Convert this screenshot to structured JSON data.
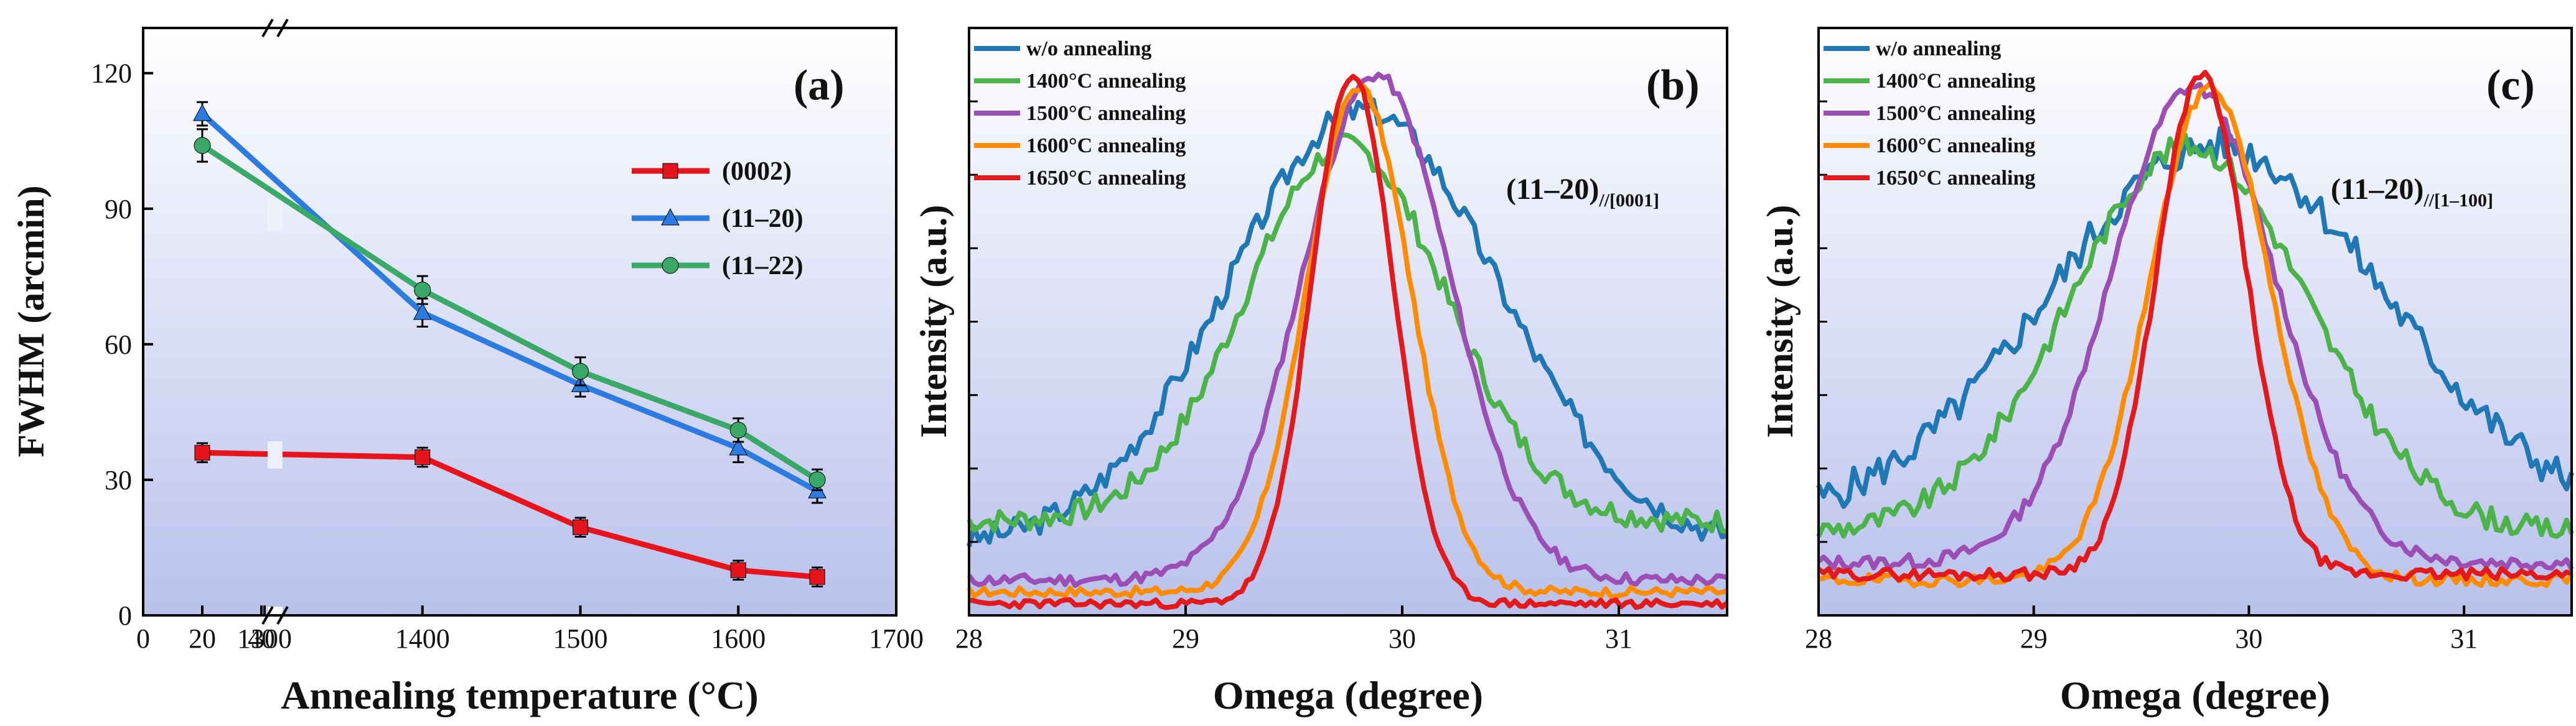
{
  "figure": {
    "panels": [
      "(a)",
      "(b)",
      "(c)"
    ]
  },
  "chart_data": [
    {
      "type": "line",
      "panel_label": "(a)",
      "xlabel": "Annealing temperature (°C)",
      "ylabel": "FWHM (arcmin)",
      "x_ticks": [
        "0",
        "20",
        "40",
        "1300",
        "1400",
        "1500",
        "1600",
        "1700"
      ],
      "y_ticks": [
        "0",
        "30",
        "60",
        "90",
        "120"
      ],
      "ylim": [
        0,
        130
      ],
      "x_break": {
        "from": 40,
        "to": 1300
      },
      "x": [
        20,
        1400,
        1500,
        1600,
        1650
      ],
      "series": [
        {
          "name": "(0002)",
          "color": "#e8141b",
          "marker": "square",
          "values": [
            36,
            35,
            19.5,
            10,
            8.5
          ],
          "err": [
            1,
            1,
            1,
            1,
            1
          ]
        },
        {
          "name": "(11–20)",
          "color": "#2c7be0",
          "marker": "triangle",
          "values": [
            111,
            67,
            51,
            37,
            27.5
          ],
          "err": [
            1.5,
            2,
            1.5,
            2,
            1.5
          ]
        },
        {
          "name": "(11–22)",
          "color": "#3aa867",
          "marker": "circle",
          "values": [
            104,
            72,
            54,
            41,
            30
          ],
          "err": [
            2.5,
            2,
            2,
            1.5,
            1.2
          ]
        }
      ]
    },
    {
      "type": "line",
      "panel_label": "(b)",
      "xlabel": "Omega (degree)",
      "ylabel": "Intensity (a.u.)",
      "x_ticks": [
        "28",
        "29",
        "30",
        "31"
      ],
      "xlim": [
        28,
        31.5
      ],
      "annotation": "(11–20)",
      "annotation_sub": "//[0001]",
      "series": [
        {
          "name": "w/o annealing",
          "color": "#1f77b4",
          "center": 29.82,
          "width": 0.62,
          "peak": 0.86,
          "base": 0.12,
          "noise": 0.022,
          "seed": 3
        },
        {
          "name": "1400°C annealing",
          "color": "#4cb34a",
          "center": 29.74,
          "width": 0.46,
          "peak": 0.8,
          "base": 0.16,
          "noise": 0.02,
          "seed": 7
        },
        {
          "name": "1500°C annealing",
          "color": "#9b4fb5",
          "center": 29.88,
          "width": 0.34,
          "peak": 0.92,
          "base": 0.06,
          "noise": 0.01,
          "seed": 11
        },
        {
          "name": "1600°C annealing",
          "color": "#ff8c00",
          "center": 29.8,
          "width": 0.24,
          "peak": 0.9,
          "base": 0.04,
          "noise": 0.008,
          "seed": 17
        },
        {
          "name": "1650°C annealing",
          "color": "#e31a1c",
          "center": 29.77,
          "width": 0.19,
          "peak": 0.92,
          "base": 0.02,
          "noise": 0.007,
          "seed": 23
        }
      ]
    },
    {
      "type": "line",
      "panel_label": "(c)",
      "xlabel": "Omega (degree)",
      "ylabel": "Intensity (a.u.)",
      "x_ticks": [
        "28",
        "29",
        "30",
        "31"
      ],
      "xlim": [
        28,
        31.5
      ],
      "annotation": "(11–20)",
      "annotation_sub": "//[1–100]",
      "series": [
        {
          "name": "w/o annealing",
          "color": "#1f77b4",
          "center": 29.85,
          "width": 0.78,
          "peak": 0.8,
          "base": 0.16,
          "noise": 0.03,
          "seed": 5
        },
        {
          "name": "1400°C annealing",
          "color": "#4cb34a",
          "center": 29.72,
          "width": 0.55,
          "peak": 0.8,
          "base": 0.14,
          "noise": 0.02,
          "seed": 9
        },
        {
          "name": "1500°C annealing",
          "color": "#9b4fb5",
          "center": 29.74,
          "width": 0.38,
          "peak": 0.9,
          "base": 0.09,
          "noise": 0.012,
          "seed": 13
        },
        {
          "name": "1600°C annealing",
          "color": "#ff8c00",
          "center": 29.82,
          "width": 0.28,
          "peak": 0.9,
          "base": 0.06,
          "noise": 0.01,
          "seed": 19
        },
        {
          "name": "1650°C annealing",
          "color": "#e31a1c",
          "center": 29.78,
          "width": 0.21,
          "peak": 0.92,
          "base": 0.07,
          "noise": 0.01,
          "seed": 29
        }
      ]
    }
  ]
}
